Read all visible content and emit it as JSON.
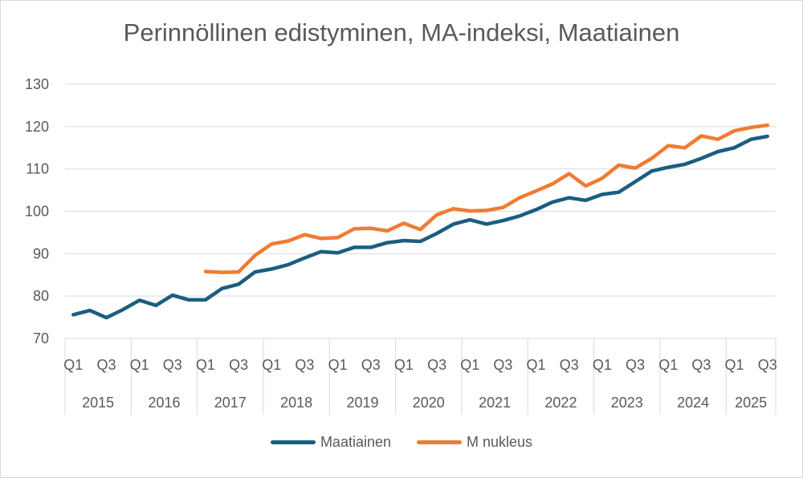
{
  "chart_data": {
    "type": "line",
    "title": "Perinnöllinen edistyminen, MA-indeksi, Maatiainen",
    "xlabel": "",
    "ylabel": "",
    "ylim": [
      70,
      130
    ],
    "yticks": [
      70,
      80,
      90,
      100,
      110,
      120,
      130
    ],
    "grid": true,
    "legend_position": "bottom",
    "years": [
      "2015",
      "2016",
      "2017",
      "2018",
      "2019",
      "2020",
      "2021",
      "2022",
      "2023",
      "2024",
      "2025"
    ],
    "quarter_labels": [
      "Q1",
      "Q3"
    ],
    "categories": [
      "2015 Q1",
      "2015 Q2",
      "2015 Q3",
      "2015 Q4",
      "2016 Q1",
      "2016 Q2",
      "2016 Q3",
      "2016 Q4",
      "2017 Q1",
      "2017 Q2",
      "2017 Q3",
      "2017 Q4",
      "2018 Q1",
      "2018 Q2",
      "2018 Q3",
      "2018 Q4",
      "2019 Q1",
      "2019 Q2",
      "2019 Q3",
      "2019 Q4",
      "2020 Q1",
      "2020 Q2",
      "2020 Q3",
      "2020 Q4",
      "2021 Q1",
      "2021 Q2",
      "2021 Q3",
      "2021 Q4",
      "2022 Q1",
      "2022 Q2",
      "2022 Q3",
      "2022 Q4",
      "2023 Q1",
      "2023 Q2",
      "2023 Q3",
      "2023 Q4",
      "2024 Q1",
      "2024 Q2",
      "2024 Q3",
      "2024 Q4",
      "2025 Q1",
      "2025 Q2",
      "2025 Q3"
    ],
    "series": [
      {
        "name": "Maatiainen",
        "color": "#1a5e80",
        "values": [
          75.6,
          76.6,
          74.9,
          76.8,
          79.0,
          77.8,
          80.2,
          79.1,
          79.1,
          81.8,
          82.8,
          85.7,
          86.4,
          87.4,
          89.0,
          90.5,
          90.2,
          91.5,
          91.5,
          92.6,
          93.1,
          92.9,
          94.8,
          97.0,
          98.0,
          97.0,
          97.8,
          98.9,
          100.4,
          102.2,
          103.2,
          102.6,
          104.0,
          104.5,
          107.0,
          109.5,
          110.4,
          111.1,
          112.5,
          114.1,
          115.0,
          117.0,
          117.7
        ]
      },
      {
        "name": "M nukleus",
        "color": "#f07b32",
        "values": [
          null,
          null,
          null,
          null,
          null,
          null,
          null,
          null,
          85.8,
          85.6,
          85.7,
          89.6,
          92.3,
          93.0,
          94.5,
          93.6,
          93.8,
          95.9,
          96.0,
          95.4,
          97.2,
          95.7,
          99.2,
          100.6,
          100.1,
          100.2,
          100.9,
          103.2,
          104.8,
          106.5,
          108.9,
          106.0,
          107.8,
          110.9,
          110.2,
          112.5,
          115.5,
          115.0,
          117.8,
          117.0,
          119.0,
          119.8,
          120.3
        ]
      }
    ]
  }
}
